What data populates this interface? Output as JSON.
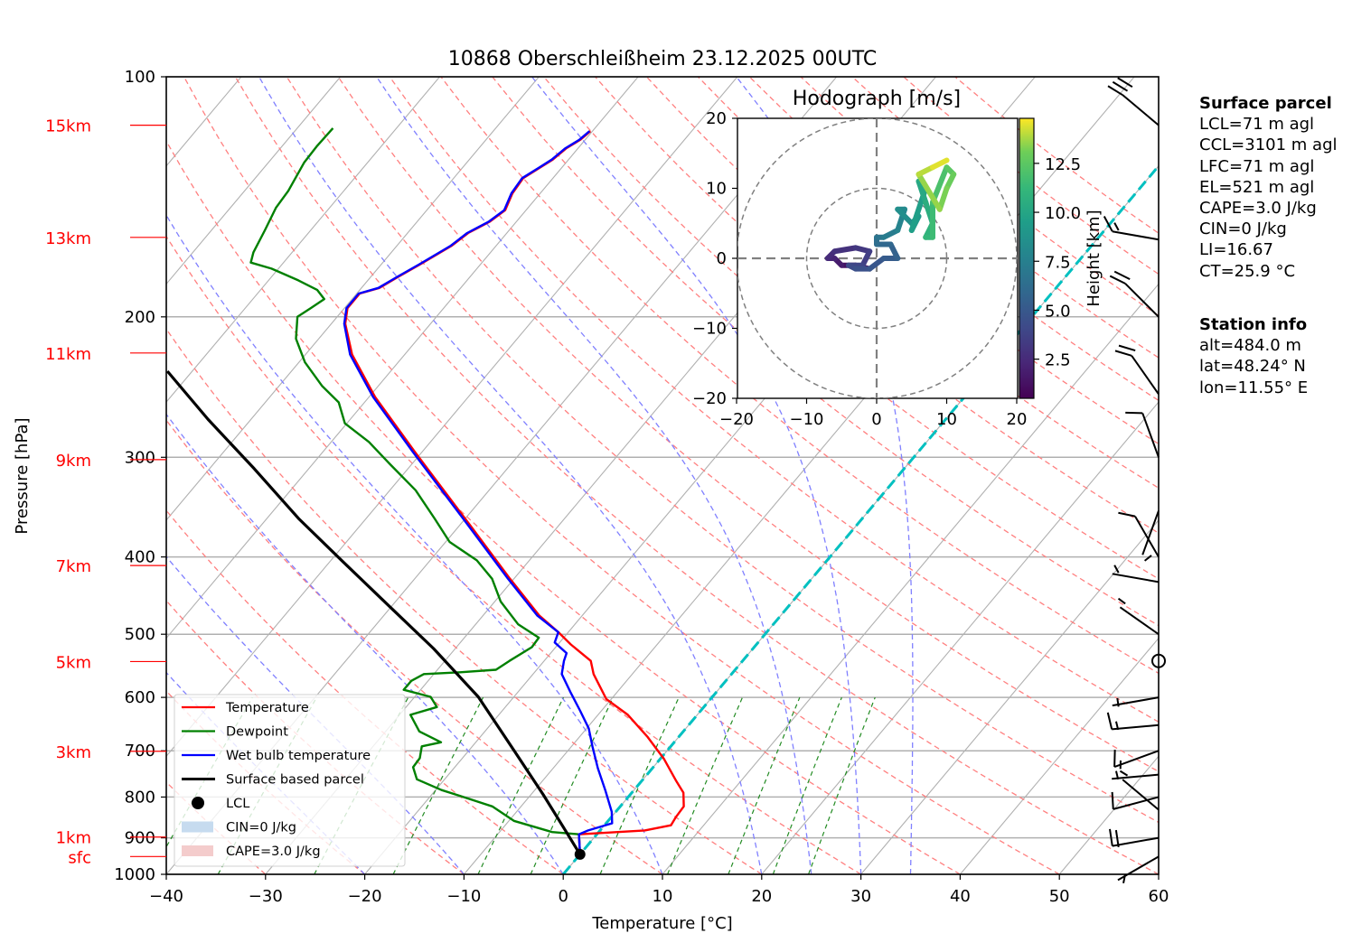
{
  "chart_data": {
    "type": "line",
    "subtype": "skew-T log-p diagram",
    "title": "10868 Oberschleißheim 23.12.2025 00UTC",
    "xlabel": "Temperature [°C]",
    "ylabel": "Pressure [hPa]",
    "xlim": [
      -40,
      60
    ],
    "ylim": [
      1000,
      100
    ],
    "x_ticks": [
      "−40",
      "−30",
      "−20",
      "−10",
      "0",
      "10",
      "20",
      "30",
      "40",
      "50",
      "60"
    ],
    "x_tick_values": [
      -40,
      -30,
      -20,
      -10,
      0,
      10,
      20,
      30,
      40,
      50,
      60
    ],
    "y_ticks": [
      "100",
      "200",
      "300",
      "400",
      "500",
      "600",
      "700",
      "800",
      "900",
      "1000"
    ],
    "y_tick_values": [
      100,
      200,
      300,
      400,
      500,
      600,
      700,
      800,
      900,
      1000
    ],
    "height_markers": [
      {
        "label": "15km",
        "p": 115
      },
      {
        "label": "13km",
        "p": 159
      },
      {
        "label": "11km",
        "p": 222
      },
      {
        "label": "9km",
        "p": 302
      },
      {
        "label": "7km",
        "p": 410
      },
      {
        "label": "5km",
        "p": 541
      },
      {
        "label": "3km",
        "p": 701
      },
      {
        "label": "1km",
        "p": 898
      },
      {
        "label": "sfc",
        "p": 950
      }
    ],
    "grid": true,
    "legend_position": "lower-left",
    "legend": [
      {
        "label": "Temperature",
        "color": "#ff0000",
        "kind": "line"
      },
      {
        "label": "Dewpoint",
        "color": "#008000",
        "kind": "line"
      },
      {
        "label": "Wet bulb temperature",
        "color": "#0000ff",
        "kind": "line"
      },
      {
        "label": "Surface based parcel",
        "color": "#000000",
        "kind": "line"
      },
      {
        "label": "LCL",
        "color": "#000000",
        "kind": "marker"
      },
      {
        "label": "CIN=0 J/kg",
        "color": "#c6dbef",
        "kind": "patch"
      },
      {
        "label": "CAPE=3.0 J/kg",
        "color": "#f4cccc",
        "kind": "patch"
      }
    ],
    "series": [
      {
        "name": "Temperature",
        "color": "#ff0000",
        "points": [
          [
            944,
            0.0
          ],
          [
            891,
            -1.8
          ],
          [
            881,
            4.5
          ],
          [
            868,
            6.7
          ],
          [
            847,
            6.5
          ],
          [
            822,
            6.4
          ],
          [
            790,
            5.2
          ],
          [
            764,
            3.5
          ],
          [
            717,
            0.4
          ],
          [
            673,
            -3.1
          ],
          [
            631,
            -7.0
          ],
          [
            603,
            -10.5
          ],
          [
            561,
            -13.9
          ],
          [
            540,
            -15.3
          ],
          [
            515,
            -18.7
          ],
          [
            497,
            -21.0
          ],
          [
            474,
            -24.3
          ],
          [
            426,
            -30.4
          ],
          [
            364,
            -39.1
          ],
          [
            295,
            -50.8
          ],
          [
            252,
            -59.4
          ],
          [
            223,
            -65.3
          ],
          [
            204,
            -68.6
          ],
          [
            195,
            -69.7
          ],
          [
            187,
            -69.7
          ],
          [
            184,
            -68.2
          ],
          [
            178,
            -67.2
          ],
          [
            172,
            -66.1
          ],
          [
            163,
            -64.5
          ],
          [
            157,
            -63.9
          ],
          [
            152,
            -62.7
          ],
          [
            147,
            -62.1
          ],
          [
            140,
            -62.8
          ],
          [
            134,
            -63.0
          ],
          [
            130,
            -62.2
          ],
          [
            127,
            -61.6
          ],
          [
            123,
            -61.2
          ],
          [
            120,
            -60.5
          ],
          [
            117,
            -60.2
          ]
        ]
      },
      {
        "name": "Wet bulb temperature",
        "color": "#0000ff",
        "points": [
          [
            944,
            0.0
          ],
          [
            891,
            -1.8
          ],
          [
            881,
            -1.2
          ],
          [
            863,
            0.6
          ],
          [
            835,
            -0.4
          ],
          [
            784,
            -2.9
          ],
          [
            736,
            -5.5
          ],
          [
            691,
            -7.9
          ],
          [
            656,
            -9.8
          ],
          [
            623,
            -12.2
          ],
          [
            591,
            -14.7
          ],
          [
            561,
            -17.1
          ],
          [
            540,
            -18.0
          ],
          [
            528,
            -18.4
          ],
          [
            512,
            -20.5
          ],
          [
            497,
            -21.0
          ],
          [
            474,
            -24.5
          ],
          [
            426,
            -30.6
          ],
          [
            364,
            -39.3
          ],
          [
            295,
            -51.0
          ],
          [
            252,
            -59.6
          ],
          [
            223,
            -65.5
          ],
          [
            204,
            -68.7
          ],
          [
            195,
            -69.8
          ],
          [
            187,
            -69.8
          ],
          [
            184,
            -68.3
          ],
          [
            178,
            -67.3
          ],
          [
            172,
            -66.2
          ],
          [
            163,
            -64.6
          ],
          [
            157,
            -64.0
          ],
          [
            152,
            -62.8
          ],
          [
            147,
            -62.2
          ],
          [
            140,
            -62.9
          ],
          [
            134,
            -63.1
          ],
          [
            130,
            -62.3
          ],
          [
            127,
            -61.7
          ],
          [
            123,
            -61.3
          ],
          [
            120,
            -60.6
          ],
          [
            117,
            -60.3
          ]
        ]
      },
      {
        "name": "Dewpoint",
        "color": "#008000",
        "points": [
          [
            944,
            0.0
          ],
          [
            891,
            -1.8
          ],
          [
            885,
            -4.7
          ],
          [
            857,
            -9.5
          ],
          [
            822,
            -12.9
          ],
          [
            797,
            -17.1
          ],
          [
            784,
            -19.4
          ],
          [
            760,
            -22.8
          ],
          [
            734,
            -24.2
          ],
          [
            715,
            -24.3
          ],
          [
            691,
            -25.1
          ],
          [
            683,
            -23.5
          ],
          [
            662,
            -26.6
          ],
          [
            631,
            -28.9
          ],
          [
            617,
            -26.9
          ],
          [
            599,
            -28.4
          ],
          [
            587,
            -31.7
          ],
          [
            572,
            -31.7
          ],
          [
            561,
            -31.0
          ],
          [
            558,
            -27.5
          ],
          [
            554,
            -24.1
          ],
          [
            540,
            -23.5
          ],
          [
            519,
            -22.4
          ],
          [
            505,
            -22.5
          ],
          [
            486,
            -25.7
          ],
          [
            455,
            -29.4
          ],
          [
            426,
            -32.2
          ],
          [
            404,
            -35.3
          ],
          [
            383,
            -39.6
          ],
          [
            358,
            -43.1
          ],
          [
            330,
            -47.4
          ],
          [
            306,
            -52.2
          ],
          [
            287,
            -56.2
          ],
          [
            272,
            -60.2
          ],
          [
            256,
            -62.6
          ],
          [
            244,
            -65.7
          ],
          [
            228,
            -69.4
          ],
          [
            213,
            -72.3
          ],
          [
            200,
            -74.0
          ],
          [
            195,
            -73.4
          ],
          [
            190,
            -72.8
          ],
          [
            185,
            -74.3
          ],
          [
            180,
            -77.0
          ],
          [
            174,
            -80.7
          ],
          [
            171,
            -83.3
          ],
          [
            166,
            -83.9
          ],
          [
            156,
            -84.6
          ],
          [
            146,
            -85.4
          ],
          [
            139,
            -85.6
          ],
          [
            128,
            -86.4
          ],
          [
            122,
            -86.5
          ],
          [
            116,
            -86.4
          ]
        ]
      },
      {
        "name": "Surface based parcel",
        "color": "#000000",
        "points": [
          [
            944,
            0.0
          ],
          [
            881,
            -3.5
          ],
          [
            794,
            -8.8
          ],
          [
            700,
            -15.4
          ],
          [
            599,
            -23.6
          ],
          [
            521,
            -32.2
          ],
          [
            460,
            -40.4
          ],
          [
            406,
            -48.6
          ],
          [
            358,
            -56.8
          ],
          [
            310,
            -65.5
          ],
          [
            269,
            -74.3
          ],
          [
            234,
            -82.5
          ]
        ]
      }
    ],
    "lcl": {
      "p": 944,
      "T": 0.0
    },
    "freezing_isotherm_T": 0,
    "hodograph": {
      "title": "Hodograph [m/s]",
      "xlim": [
        -20,
        20
      ],
      "ylim": [
        -20,
        20
      ],
      "x_ticks": [
        "−20",
        "−10",
        "0",
        "10",
        "20"
      ],
      "y_ticks": [
        "20",
        "10",
        "0",
        "−10",
        "−20"
      ],
      "tick_values": [
        -20,
        -10,
        0,
        10,
        20
      ],
      "rings": [
        10,
        20
      ],
      "colorbar_label": "Height [km]",
      "colorbar_ticks": [
        "2.5",
        "5.0",
        "7.5",
        "10.0",
        "12.5"
      ],
      "colorbar_tick_values": [
        2.5,
        5.0,
        7.5,
        10.0,
        12.5
      ],
      "colorbar_range": [
        0.5,
        14.8
      ],
      "points": [
        [
          -1,
          -1.5,
          0.5
        ],
        [
          -3,
          -1,
          1.0
        ],
        [
          -5,
          -1,
          1.5
        ],
        [
          -6,
          0,
          2.0
        ],
        [
          -7,
          0,
          2.3
        ],
        [
          -6,
          1,
          2.7
        ],
        [
          -3,
          1.5,
          3.0
        ],
        [
          -1,
          1,
          3.3
        ],
        [
          -2,
          -1,
          3.7
        ],
        [
          -4,
          -1,
          4.0
        ],
        [
          -3,
          -1.5,
          4.3
        ],
        [
          -1,
          -1.5,
          4.7
        ],
        [
          1,
          0,
          5.0
        ],
        [
          3,
          0,
          5.3
        ],
        [
          2,
          2,
          5.7
        ],
        [
          0,
          2,
          6.0
        ],
        [
          0,
          3,
          6.5
        ],
        [
          1,
          3,
          7.0
        ],
        [
          3,
          4,
          7.5
        ],
        [
          4,
          7,
          8.0
        ],
        [
          3,
          7,
          8.3
        ],
        [
          5,
          5,
          8.7
        ],
        [
          6,
          6,
          9.0
        ],
        [
          5,
          4,
          9.3
        ],
        [
          7,
          10,
          9.7
        ],
        [
          6,
          11,
          10.0
        ],
        [
          7,
          8,
          10.3
        ],
        [
          8,
          5,
          10.7
        ],
        [
          7,
          3,
          11.0
        ],
        [
          8,
          3,
          11.3
        ],
        [
          8,
          8,
          11.7
        ],
        [
          10,
          13,
          12.2
        ],
        [
          11,
          12,
          12.7
        ],
        [
          10,
          10,
          13.0
        ],
        [
          9,
          7,
          13.3
        ],
        [
          6,
          12,
          13.7
        ],
        [
          8,
          13,
          14.2
        ],
        [
          10,
          14,
          14.7
        ]
      ]
    },
    "wind_barbs": [
      {
        "p": 115,
        "dir": 230,
        "speed_kt": 30
      },
      {
        "p": 160,
        "dir": 260,
        "speed_kt": 15
      },
      {
        "p": 200,
        "dir": 225,
        "speed_kt": 20
      },
      {
        "p": 250,
        "dir": 215,
        "speed_kt": 20
      },
      {
        "p": 300,
        "dir": 200,
        "speed_kt": 10
      },
      {
        "p": 350,
        "dir": 340,
        "speed_kt": 5
      },
      {
        "p": 400,
        "dir": 210,
        "speed_kt": 10
      },
      {
        "p": 430,
        "dir": 260,
        "speed_kt": 5
      },
      {
        "p": 500,
        "dir": 235,
        "speed_kt": 5
      },
      {
        "p": 540,
        "dir": 0,
        "speed_kt": 0
      },
      {
        "p": 600,
        "dir": 280,
        "speed_kt": 5
      },
      {
        "p": 650,
        "dir": 275,
        "speed_kt": 15
      },
      {
        "p": 700,
        "dir": 290,
        "speed_kt": 15
      },
      {
        "p": 750,
        "dir": 275,
        "speed_kt": 5
      },
      {
        "p": 800,
        "dir": 285,
        "speed_kt": 10
      },
      {
        "p": 830,
        "dir": 230,
        "speed_kt": 5
      },
      {
        "p": 900,
        "dir": 280,
        "speed_kt": 20
      },
      {
        "p": 950,
        "dir": 300,
        "speed_kt": 5
      }
    ]
  },
  "side_panel": {
    "parcel_heading": "Surface parcel",
    "parcel_lines": [
      "LCL=71 m agl",
      "CCL=3101 m agl",
      "LFC=71 m agl",
      "EL=521 m agl",
      "CAPE=3.0 J/kg",
      "CIN=0 J/kg",
      "LI=16.67",
      "CT=25.9 °C"
    ],
    "station_heading": "Station info",
    "station_lines": [
      "alt=484.0 m",
      "lat=48.24° N",
      "lon=11.55° E"
    ]
  },
  "colors": {
    "isotherm": "#b0b0b0",
    "dry_adiabat": "#ff8080",
    "moist_adiabat": "#8080ff",
    "mixing_ratio": "#228b22",
    "zero_isotherm": "#00c0c0",
    "height_marker": "#ff0000"
  }
}
